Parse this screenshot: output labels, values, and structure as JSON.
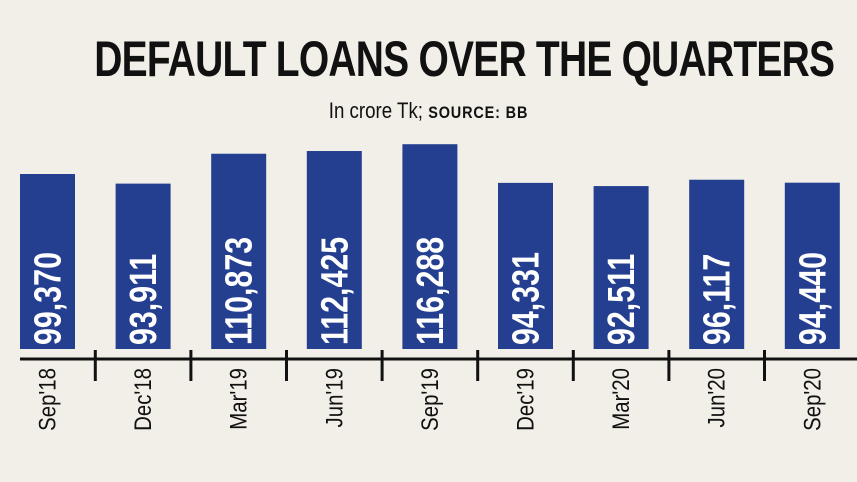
{
  "chart_data": {
    "type": "bar",
    "title": "DEFAULT LOANS OVER THE QUARTERS",
    "subtitle": "In crore Tk;",
    "source": "SOURCE: BB",
    "categories": [
      "Sep'18",
      "Dec'18",
      "Mar'19",
      "Jun'19",
      "Sep'19",
      "Dec'19",
      "Mar'20",
      "Jun'20",
      "Sep'20"
    ],
    "values": [
      99370,
      93911,
      110873,
      112425,
      116288,
      94331,
      92511,
      96117,
      94440
    ],
    "value_labels": [
      "99,370",
      "93,911",
      "110,873",
      "112,425",
      "116,288",
      "94,331",
      "92,511",
      "96,117",
      "94,440"
    ],
    "ylim": [
      0,
      116288
    ],
    "grid": false,
    "colors": {
      "bar": "#243f8f",
      "background": "#f2efe8",
      "label": "#ffffff"
    }
  }
}
